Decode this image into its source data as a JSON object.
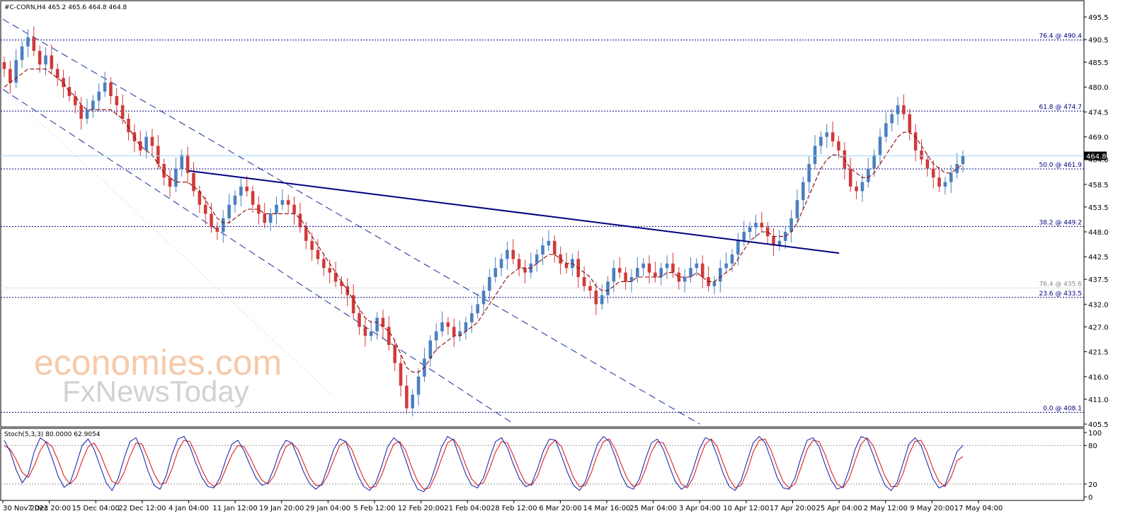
{
  "header": {
    "symbol_info": "#C-CORN,H4  465.2 465.6 464.8 464.8"
  },
  "watermark": {
    "line1": "economies.com",
    "line2": "FxNewsToday"
  },
  "colors": {
    "bull": "#4a7fc1",
    "bear": "#d13a3a",
    "ma": "#8b0000",
    "fib": "#000080",
    "trend": "#000080",
    "channel": "#2a3fa0",
    "price_line": "#9fd8f0",
    "stoch_main": "#1e2fb0",
    "stoch_signal": "#e02020"
  },
  "price_label": "464.8",
  "stoch_header": "Stoch(5,3,3) 80.0000 62.9054",
  "chart_data": [
    {
      "type": "candlestick",
      "title": "#C-CORN,H4",
      "ohlc_last": {
        "open": 465.2,
        "high": 465.6,
        "low": 464.8,
        "close": 464.8
      },
      "ylim": [
        405.5,
        497.0
      ],
      "y_ticks": [
        "495.5",
        "490.5",
        "485.5",
        "480.0",
        "474.5",
        "469.0",
        "464.0",
        "458.5",
        "453.5",
        "448.0",
        "442.5",
        "437.5",
        "432.0",
        "427.0",
        "421.5",
        "416.0",
        "411.0",
        "405.5"
      ],
      "x_ticks": [
        "30 Nov 2023",
        "7 Dec 20:00",
        "15 Dec 04:00",
        "22 Dec 12:00",
        "4 Jan 04:00",
        "11 Jan 12:00",
        "19 Jan 20:00",
        "29 Jan 04:00",
        "5 Feb 12:00",
        "12 Feb 20:00",
        "21 Feb 04:00",
        "28 Feb 12:00",
        "6 Mar 20:00",
        "14 Mar 16:00",
        "25 Mar 04:00",
        "3 Apr 04:00",
        "10 Apr 12:00",
        "17 Apr 20:00",
        "25 Apr 04:00",
        "2 May 12:00",
        "9 May 20:00",
        "17 May 04:00"
      ],
      "fibonacci_levels": [
        {
          "label": "76.4 @ 490.4",
          "value": 490.4
        },
        {
          "label": "61.8 @ 474.7",
          "value": 474.7
        },
        {
          "label": "50.0 @ 461.9",
          "value": 461.9
        },
        {
          "label": "38.2 @ 449.2",
          "value": 449.2
        },
        {
          "label": "76.4 @ 435.6",
          "value": 435.6
        },
        {
          "label": "23.6 @ 433.5",
          "value": 433.5
        },
        {
          "label": "0.0 @ 408.1",
          "value": 408.1
        }
      ],
      "trendline": {
        "from": {
          "x": "4 Jan 04:00",
          "y": 461.5
        },
        "to": {
          "x": "25 Apr 04:00",
          "y": 443.3
        }
      },
      "channel": {
        "upper": {
          "from": {
            "x": "30 Nov 2023",
            "y": 495.0
          },
          "to": {
            "x": "3 Apr 04:00",
            "y": 405.5
          }
        },
        "lower": {
          "from": {
            "x": "30 Nov 2023",
            "y": 479.5
          },
          "to": {
            "x": "28 Feb 12:00",
            "y": 405.5
          }
        }
      },
      "closes": [
        484,
        481,
        486,
        489,
        491,
        488,
        485,
        487,
        484,
        482,
        480,
        478,
        476,
        473,
        475,
        477,
        479,
        481,
        478,
        476,
        473,
        470,
        468,
        466,
        469,
        467,
        463,
        460,
        458,
        462,
        465,
        461,
        457,
        454,
        452,
        449,
        448,
        451,
        454,
        456,
        458,
        457,
        454,
        452,
        450,
        452,
        454,
        455,
        454,
        452,
        449,
        446,
        444,
        442,
        440,
        439,
        437,
        436,
        434,
        430,
        427,
        425,
        426,
        429,
        427,
        423,
        419,
        414,
        409,
        412,
        416,
        420,
        424,
        426,
        428,
        427,
        425,
        426,
        428,
        430,
        432,
        435,
        438,
        440,
        442,
        444,
        442,
        440,
        439,
        441,
        443,
        445,
        446,
        443,
        441,
        440,
        442,
        438,
        436,
        435,
        432,
        434,
        437,
        440,
        439,
        437,
        438,
        440,
        441,
        439,
        438,
        440,
        441,
        439,
        437,
        438,
        440,
        441,
        438,
        436,
        437,
        440,
        441,
        443,
        446,
        448,
        449,
        450,
        449,
        447,
        445,
        446,
        448,
        451,
        455,
        459,
        463,
        467,
        469,
        470,
        468,
        466,
        462,
        458,
        457,
        459,
        462,
        465,
        469,
        472,
        474,
        476,
        474,
        470,
        466,
        464,
        462,
        460,
        458,
        459,
        461,
        463,
        464.8
      ],
      "ma_closes": [
        480,
        481,
        482,
        483,
        484,
        484,
        484,
        484,
        483,
        482,
        481,
        479,
        478,
        476,
        475,
        475,
        475,
        475,
        475,
        474,
        473,
        471,
        469,
        467,
        466,
        465,
        463,
        461,
        460,
        459,
        459,
        459,
        458,
        457,
        455,
        453,
        451,
        450,
        450,
        451,
        452,
        453,
        453,
        453,
        452,
        452,
        452,
        452,
        452,
        452,
        451,
        449,
        447,
        445,
        443,
        441,
        439,
        437,
        435,
        433,
        431,
        429,
        428,
        428,
        427,
        426,
        424,
        421,
        418,
        417,
        417,
        418,
        420,
        422,
        423,
        424,
        425,
        425,
        426,
        427,
        428,
        430,
        432,
        434,
        436,
        438,
        439,
        440,
        440,
        440,
        441,
        442,
        443,
        443,
        442,
        441,
        441,
        440,
        439,
        438,
        436,
        435,
        435,
        436,
        437,
        437,
        437,
        438,
        438,
        438,
        438,
        438,
        439,
        439,
        438,
        438,
        438,
        439,
        438,
        437,
        437,
        438,
        439,
        440,
        442,
        444,
        446,
        447,
        448,
        448,
        447,
        447,
        447,
        448,
        450,
        453,
        456,
        459,
        462,
        464,
        465,
        465,
        464,
        462,
        461,
        460,
        460,
        461,
        463,
        465,
        467,
        469,
        470,
        470,
        469,
        467,
        465,
        463,
        462,
        461,
        461,
        462,
        463
      ],
      "stochastic": {
        "title": "Stoch(5,3,3)",
        "main_last": 80.0,
        "signal_last": 62.9054,
        "ylim": [
          0,
          100
        ],
        "y_ticks": [
          "100",
          "80",
          "20",
          "0"
        ],
        "levels": [
          80,
          20
        ],
        "main": [
          88,
          70,
          42,
          22,
          35,
          70,
          92,
          85,
          60,
          32,
          15,
          22,
          50,
          80,
          90,
          74,
          48,
          22,
          10,
          28,
          60,
          86,
          92,
          70,
          40,
          18,
          12,
          32,
          66,
          90,
          94,
          78,
          52,
          30,
          16,
          14,
          30,
          58,
          82,
          88,
          72,
          50,
          30,
          18,
          22,
          44,
          72,
          88,
          84,
          62,
          38,
          20,
          12,
          20,
          46,
          74,
          90,
          86,
          60,
          34,
          16,
          10,
          22,
          48,
          78,
          92,
          84,
          58,
          30,
          12,
          8,
          20,
          48,
          78,
          94,
          88,
          62,
          36,
          18,
          14,
          30,
          60,
          86,
          92,
          76,
          50,
          28,
          16,
          20,
          44,
          72,
          90,
          88,
          64,
          38,
          18,
          10,
          24,
          54,
          82,
          94,
          86,
          62,
          34,
          16,
          12,
          28,
          58,
          84,
          90,
          74,
          48,
          24,
          12,
          18,
          44,
          74,
          92,
          88,
          64,
          36,
          16,
          10,
          26,
          56,
          84,
          94,
          84,
          58,
          30,
          14,
          12,
          30,
          62,
          88,
          92,
          78,
          50,
          26,
          12,
          16,
          42,
          74,
          94,
          90,
          66,
          40,
          18,
          10,
          22,
          52,
          82,
          92,
          80,
          54,
          28,
          14,
          18,
          44,
          70,
          80
        ],
        "signal": [
          80,
          74,
          58,
          38,
          30,
          48,
          72,
          86,
          78,
          56,
          32,
          20,
          30,
          56,
          78,
          84,
          68,
          44,
          24,
          20,
          38,
          64,
          84,
          82,
          60,
          36,
          20,
          22,
          44,
          72,
          88,
          86,
          66,
          42,
          24,
          16,
          22,
          44,
          66,
          80,
          78,
          62,
          42,
          26,
          20,
          32,
          56,
          78,
          84,
          74,
          52,
          30,
          18,
          18,
          34,
          58,
          80,
          86,
          74,
          50,
          28,
          14,
          16,
          34,
          60,
          82,
          86,
          72,
          46,
          24,
          12,
          14,
          34,
          60,
          84,
          90,
          76,
          50,
          28,
          18,
          22,
          44,
          70,
          86,
          84,
          64,
          40,
          22,
          18,
          32,
          58,
          80,
          88,
          78,
          54,
          30,
          16,
          18,
          38,
          66,
          86,
          90,
          74,
          50,
          28,
          16,
          20,
          42,
          70,
          86,
          84,
          64,
          40,
          20,
          14,
          30,
          58,
          82,
          90,
          78,
          52,
          28,
          14,
          18,
          40,
          70,
          88,
          90,
          72,
          46,
          24,
          14,
          20,
          46,
          74,
          88,
          86,
          66,
          40,
          20,
          14,
          28,
          56,
          82,
          92,
          80,
          56,
          32,
          16,
          16,
          36,
          66,
          86,
          88,
          70,
          44,
          24,
          16,
          30,
          56,
          62.9054
        ]
      }
    }
  ]
}
